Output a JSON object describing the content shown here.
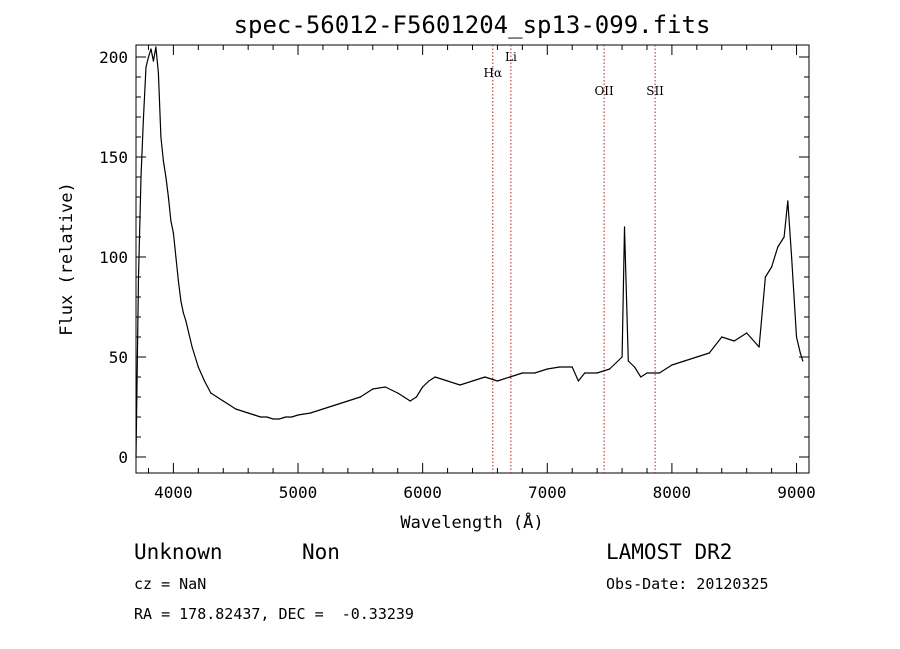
{
  "chart_data": {
    "type": "line",
    "title": "spec-56012-F5601204_sp13-099.fits",
    "xlabel": "Wavelength (Å)",
    "ylabel": "Flux (relative)",
    "xlim": [
      3700,
      9100
    ],
    "ylim": [
      -8,
      206
    ],
    "x_ticks": [
      4000,
      5000,
      6000,
      7000,
      8000,
      9000
    ],
    "y_ticks": [
      0,
      50,
      100,
      150,
      200
    ],
    "grid": false,
    "series": [
      {
        "x": [
          3700,
          3720,
          3740,
          3760,
          3780,
          3800,
          3820,
          3840,
          3860,
          3880,
          3900,
          3920,
          3940,
          3960,
          3980,
          4000,
          4020,
          4040,
          4060,
          4080,
          4100,
          4150,
          4200,
          4250,
          4300,
          4350,
          4400,
          4450,
          4500,
          4550,
          4600,
          4650,
          4700,
          4750,
          4800,
          4850,
          4900,
          4950,
          5000,
          5100,
          5200,
          5300,
          5400,
          5500,
          5600,
          5700,
          5800,
          5850,
          5900,
          5950,
          6000,
          6050,
          6100,
          6200,
          6300,
          6400,
          6500,
          6600,
          6700,
          6800,
          6900,
          7000,
          7100,
          7200,
          7250,
          7300,
          7400,
          7500,
          7600,
          7620,
          7650,
          7700,
          7750,
          7800,
          7900,
          8000,
          8100,
          8200,
          8300,
          8400,
          8500,
          8600,
          8700,
          8750,
          8800,
          8850,
          8900,
          8930,
          8960,
          9000,
          9030,
          9050
        ],
        "y": [
          0,
          90,
          140,
          170,
          195,
          200,
          204,
          198,
          205,
          192,
          160,
          148,
          140,
          130,
          118,
          112,
          100,
          88,
          78,
          72,
          68,
          55,
          45,
          38,
          32,
          30,
          28,
          26,
          24,
          23,
          22,
          21,
          20,
          20,
          19,
          19,
          20,
          20,
          21,
          22,
          24,
          26,
          28,
          30,
          34,
          35,
          32,
          30,
          28,
          30,
          35,
          38,
          40,
          38,
          36,
          38,
          40,
          38,
          40,
          42,
          42,
          44,
          45,
          45,
          38,
          42,
          42,
          44,
          50,
          115,
          48,
          45,
          40,
          42,
          42,
          46,
          48,
          50,
          52,
          60,
          58,
          62,
          55,
          90,
          95,
          105,
          110,
          128,
          100,
          60,
          52,
          48
        ]
      }
    ],
    "emission_lines": [
      {
        "label": "Hα",
        "x": 6563
      },
      {
        "label": "Li",
        "x": 6708
      },
      {
        "label": "OII",
        "x": 7456
      },
      {
        "label": "SII",
        "x": 7865
      }
    ],
    "line_color": "#000000",
    "marker_color": "#b22222"
  },
  "info": {
    "class_label": "Unknown",
    "subclass_label": "Non",
    "survey": "LAMOST DR2",
    "cz_text": "cz = NaN",
    "obs_date_text": "Obs-Date: 20120325",
    "radec_text": "RA = 178.82437, DEC =  -0.33239"
  }
}
